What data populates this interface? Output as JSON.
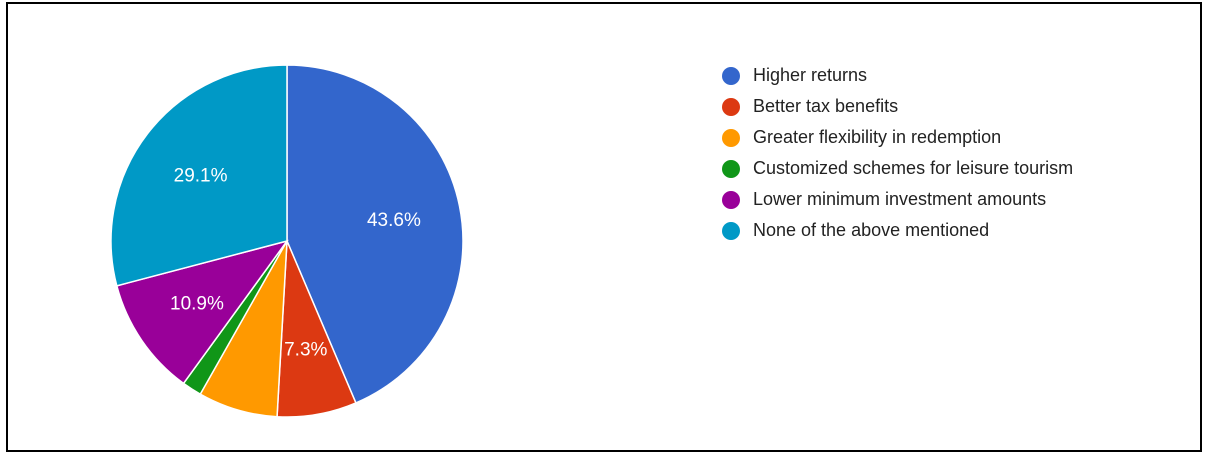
{
  "chart_data": {
    "type": "pie",
    "slices": [
      {
        "label": "Higher returns",
        "value": 43.6,
        "color": "#3366cc",
        "data_label": "43.6%"
      },
      {
        "label": "Better tax benefits",
        "value": 7.3,
        "color": "#dc3912",
        "data_label": "7.3%"
      },
      {
        "label": "Greater flexibility in redemption",
        "value": 7.3,
        "color": "#ff9900",
        "data_label": ""
      },
      {
        "label": "Customized schemes for leisure tourism",
        "value": 1.8,
        "color": "#109618",
        "data_label": ""
      },
      {
        "label": "Lower minimum investment amounts",
        "value": 10.9,
        "color": "#990099",
        "data_label": "10.9%"
      },
      {
        "label": "None of the above mentioned",
        "value": 29.1,
        "color": "#0099c6",
        "data_label": "29.1%"
      }
    ],
    "legend_position": "right"
  }
}
